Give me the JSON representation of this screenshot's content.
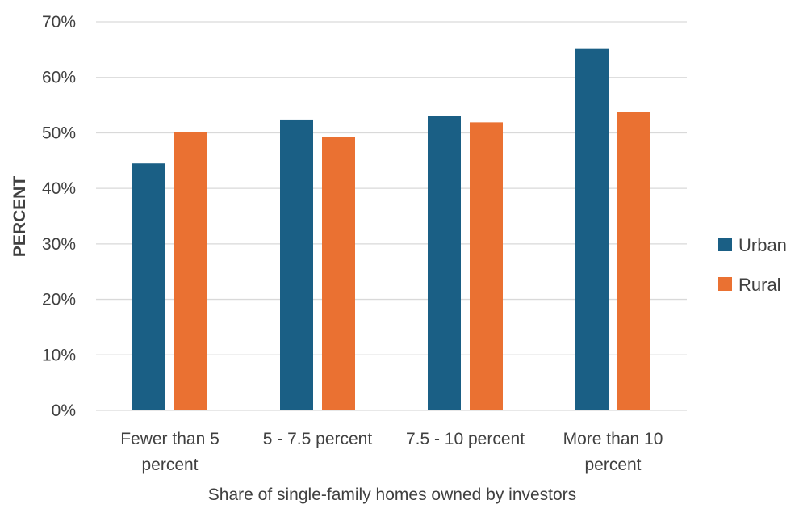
{
  "chart_data": {
    "type": "bar",
    "title": "",
    "xlabel": "Share of single-family homes owned by investors",
    "ylabel": "PERCENT",
    "ylim": [
      0,
      70
    ],
    "yticks": [
      "0%",
      "10%",
      "20%",
      "30%",
      "40%",
      "50%",
      "60%",
      "70%"
    ],
    "ytick_values": [
      0,
      10,
      20,
      30,
      40,
      50,
      60,
      70
    ],
    "grid": true,
    "legend_position": "right",
    "categories": [
      [
        "Fewer than 5",
        "percent"
      ],
      [
        "5 - 7.5 percent"
      ],
      [
        "7.5 - 10 percent"
      ],
      [
        "More than 10",
        "percent"
      ]
    ],
    "series": [
      {
        "name": "Urban",
        "color": "#1a5f85",
        "values": [
          44.5,
          52.4,
          53.1,
          65.1
        ]
      },
      {
        "name": "Rural",
        "color": "#ea7132",
        "values": [
          50.2,
          49.2,
          51.9,
          53.7
        ]
      }
    ]
  }
}
